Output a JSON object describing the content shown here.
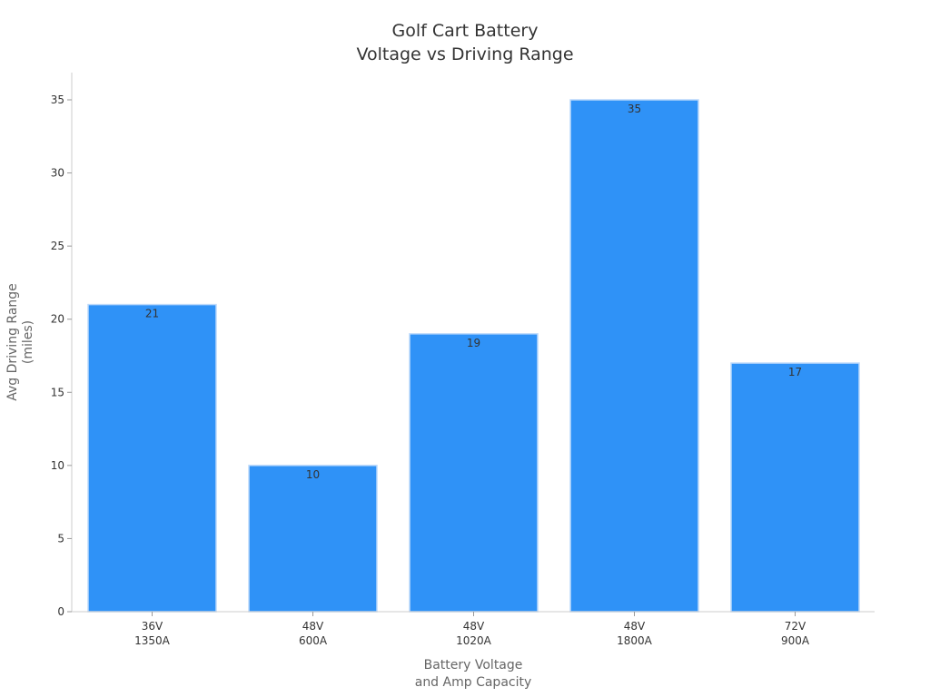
{
  "chart_data": {
    "type": "bar",
    "title": [
      "Golf Cart Battery",
      "Voltage vs Driving Range"
    ],
    "xlabel": [
      "Battery Voltage",
      "and Amp Capacity"
    ],
    "ylabel": [
      "Avg Driving Range",
      "(miles)"
    ],
    "categories": [
      [
        "36V",
        "1350A"
      ],
      [
        "48V",
        "600A"
      ],
      [
        "48V",
        "1020A"
      ],
      [
        "48V",
        "1800A"
      ],
      [
        "72V",
        "900A"
      ]
    ],
    "values": [
      21,
      10,
      19,
      35,
      17
    ],
    "ylim": [
      0,
      35
    ],
    "yticks": [
      0,
      5,
      10,
      15,
      20,
      25,
      30,
      35
    ],
    "bar_color": "#2f92f7",
    "bar_edge_color": "#bcd9fb",
    "grid": false,
    "legend": "none",
    "data_labels": true
  }
}
